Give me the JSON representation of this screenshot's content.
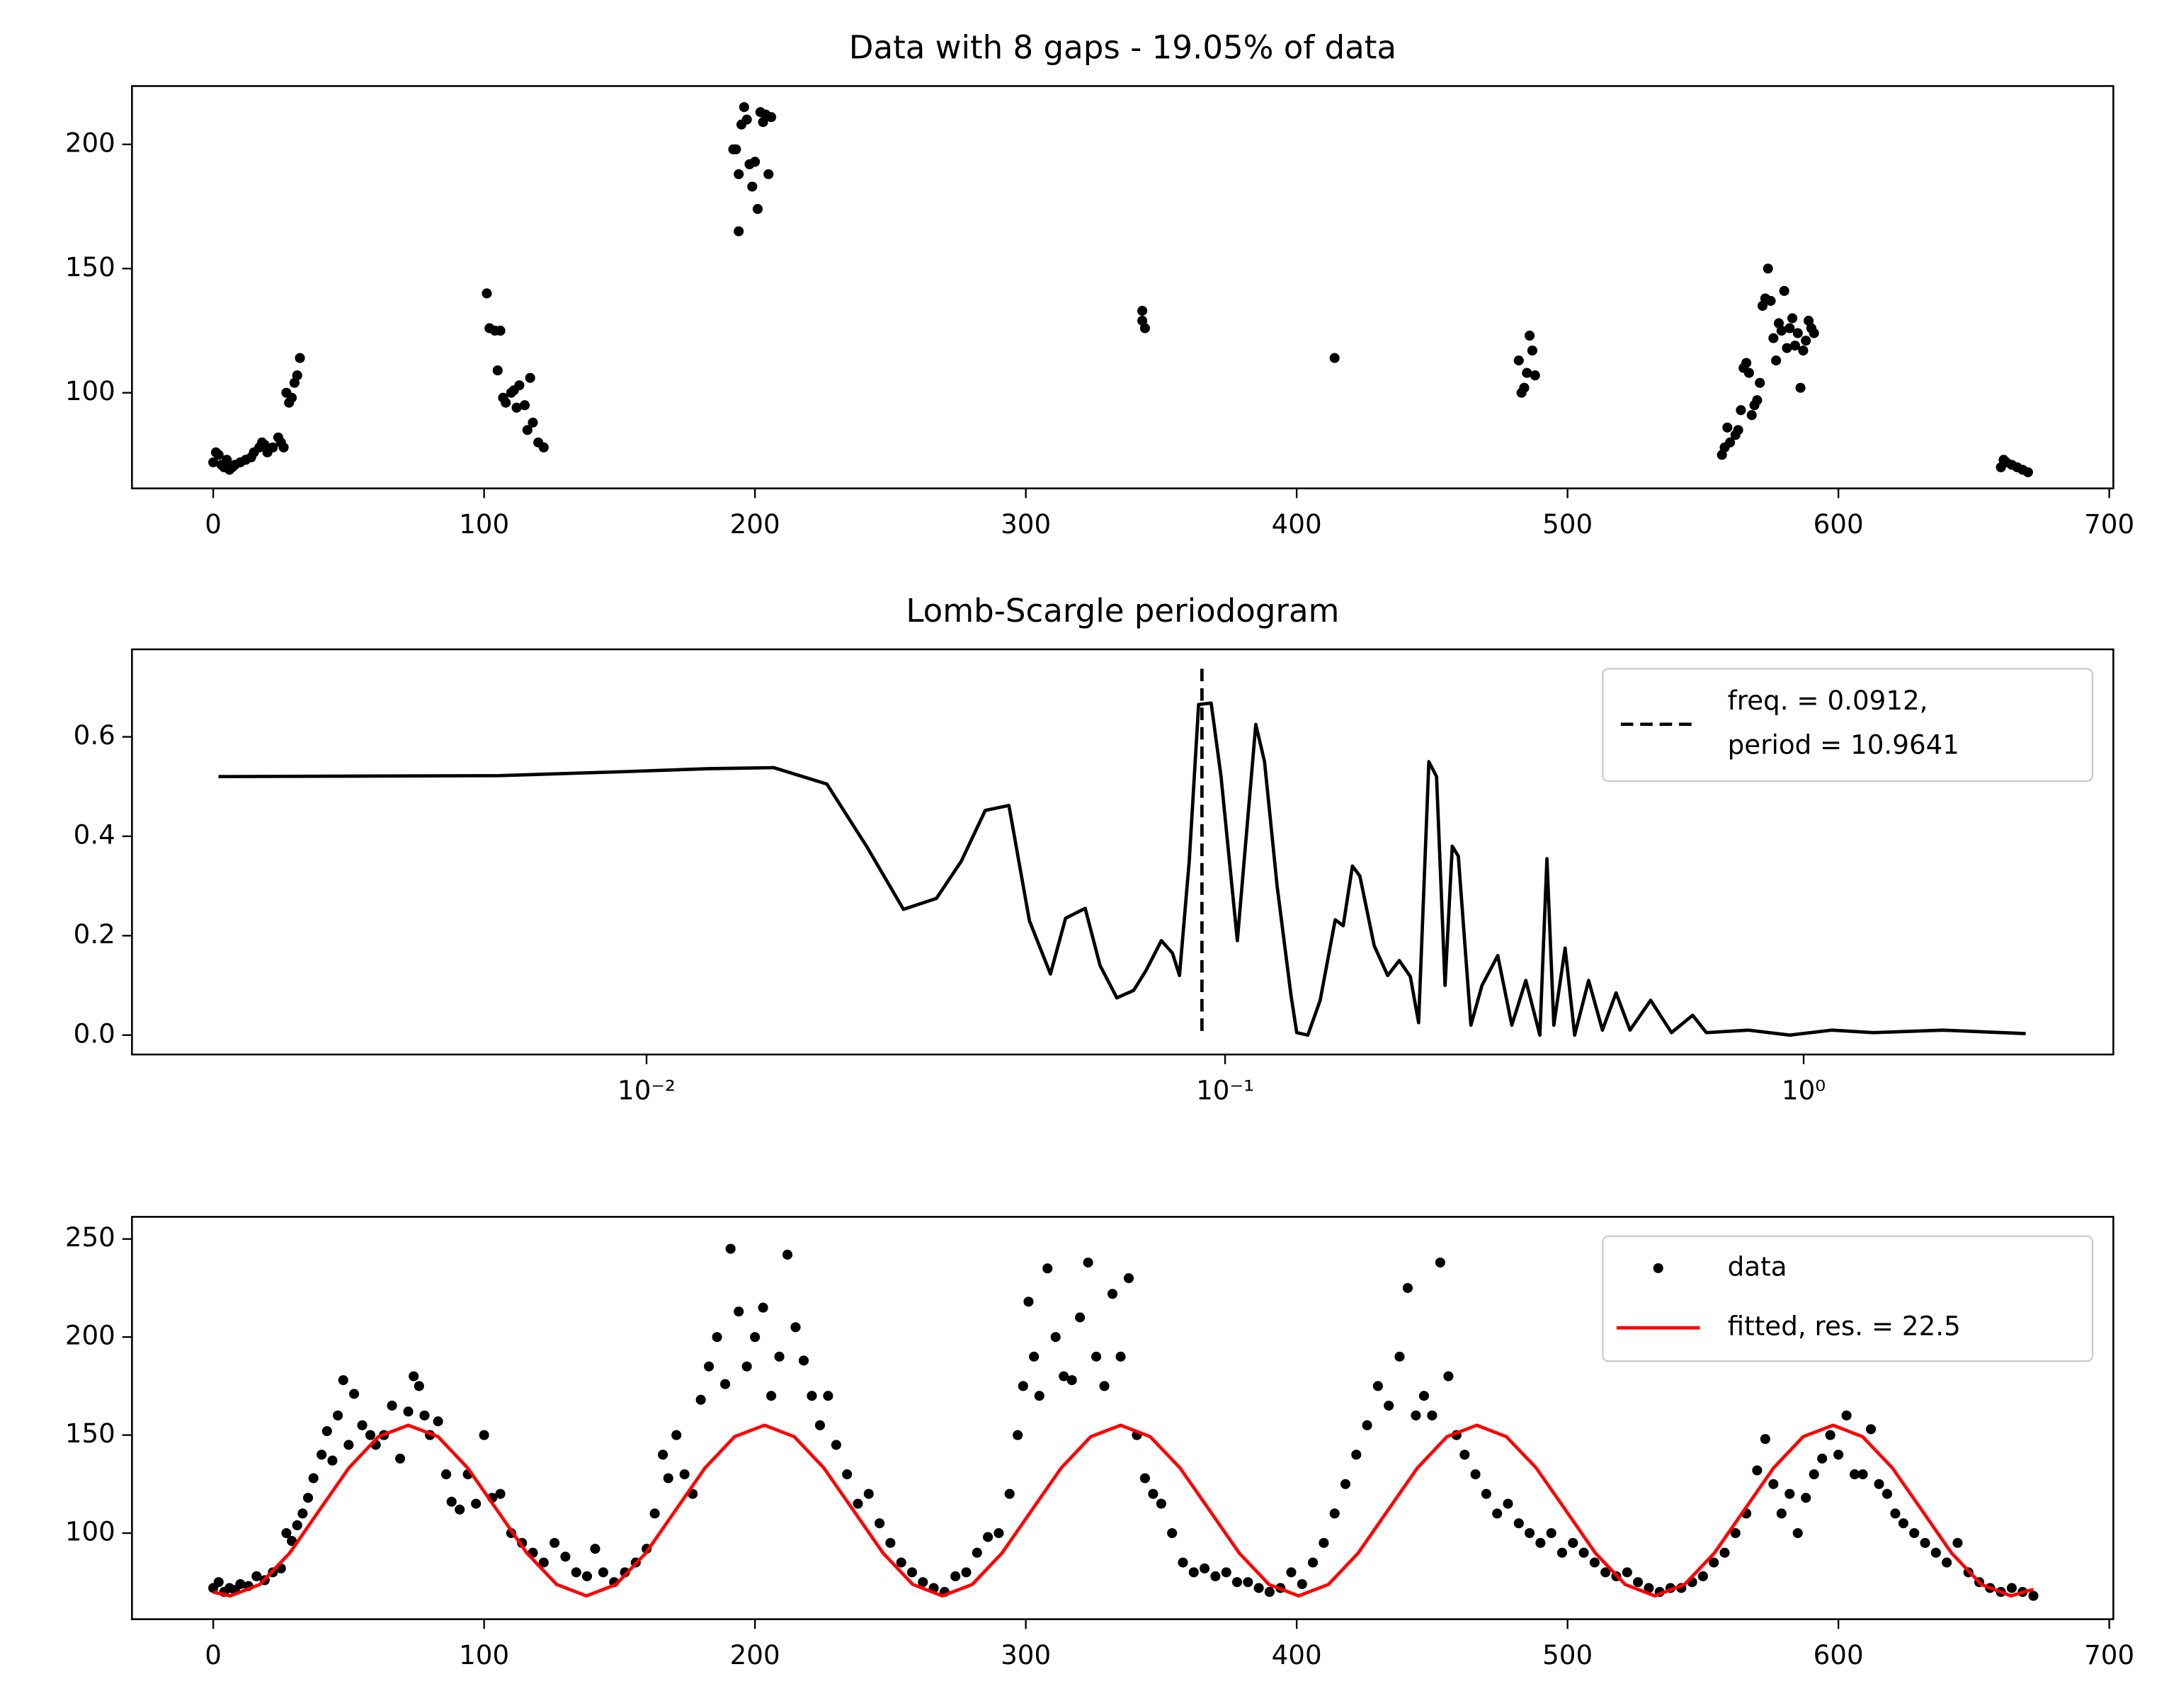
{
  "chart_data": [
    {
      "type": "scatter",
      "title": "Data with 8 gaps - 19.05% of data",
      "color": "#000000",
      "x": [
        0,
        1,
        2,
        3,
        4,
        5,
        6,
        7,
        8,
        10,
        12,
        14,
        15,
        17,
        18,
        19,
        20,
        22,
        24,
        25,
        26,
        27,
        28,
        29,
        30,
        31,
        32,
        101,
        102,
        104,
        106,
        105,
        107,
        108,
        110,
        111,
        112,
        113,
        115,
        116,
        117,
        118,
        120,
        122,
        192,
        193,
        194,
        194,
        195,
        196,
        197,
        198,
        199,
        200,
        201,
        202,
        203,
        204,
        205,
        206,
        343,
        343,
        344,
        414,
        482,
        483,
        484,
        485,
        486,
        487,
        488,
        557,
        558,
        559,
        560,
        562,
        563,
        564,
        565,
        566,
        567,
        568,
        569,
        570,
        571,
        572,
        573,
        574,
        575,
        576,
        577,
        578,
        579,
        580,
        581,
        582,
        583,
        584,
        585,
        586,
        587,
        588,
        589,
        590,
        591,
        660,
        661,
        662,
        664,
        666,
        668,
        670
      ],
      "values": [
        72,
        76,
        75,
        71,
        70,
        73,
        69,
        70,
        71,
        72,
        73,
        74,
        76,
        78,
        80,
        79,
        76,
        78,
        82,
        80,
        78,
        100,
        96,
        98,
        104,
        107,
        114,
        140,
        126,
        125,
        125,
        109,
        98,
        96,
        100,
        101,
        94,
        103,
        95,
        85,
        106,
        88,
        80,
        78,
        198,
        198,
        165,
        188,
        208,
        215,
        210,
        192,
        183,
        193,
        174,
        213,
        209,
        212,
        188,
        211,
        133,
        129,
        126,
        114,
        113,
        100,
        102,
        108,
        123,
        117,
        107,
        75,
        78,
        86,
        80,
        83,
        85,
        93,
        110,
        112,
        108,
        91,
        95,
        97,
        104,
        135,
        138,
        150,
        137,
        122,
        113,
        128,
        125,
        141,
        118,
        126,
        130,
        119,
        124,
        102,
        117,
        121,
        129,
        126,
        124,
        70,
        73,
        72,
        71,
        70,
        69,
        68
      ],
      "xlim": [
        -30,
        701.5
      ],
      "ylim": [
        61.5,
        223.5
      ],
      "xticks": [
        0,
        100,
        200,
        300,
        400,
        500,
        600,
        700
      ],
      "yticks": [
        100,
        150,
        200
      ]
    },
    {
      "type": "line",
      "title": "Lomb-Scargle periodogram",
      "color": "#000000",
      "xscale": "log",
      "x": [
        0.00182,
        0.00557,
        0.00917,
        0.0128,
        0.0166,
        0.0205,
        0.024,
        0.0278,
        0.0317,
        0.035,
        0.0385,
        0.0423,
        0.0459,
        0.0499,
        0.053,
        0.0573,
        0.0608,
        0.065,
        0.0695,
        0.073,
        0.0776,
        0.0811,
        0.0834,
        0.0867,
        0.09,
        0.0946,
        0.0984,
        0.105,
        0.113,
        0.117,
        0.123,
        0.13,
        0.133,
        0.139,
        0.146,
        0.155,
        0.16,
        0.166,
        0.171,
        0.181,
        0.191,
        0.2,
        0.209,
        0.216,
        0.225,
        0.232,
        0.24,
        0.247,
        0.253,
        0.266,
        0.278,
        0.296,
        0.313,
        0.331,
        0.35,
        0.36,
        0.37,
        0.387,
        0.402,
        0.425,
        0.449,
        0.474,
        0.501,
        0.544,
        0.591,
        0.643,
        0.679,
        0.802,
        0.946,
        1.12,
        1.32,
        1.74,
        2.42
      ],
      "values": [
        0.52,
        0.522,
        0.53,
        0.536,
        0.538,
        0.505,
        0.38,
        0.253,
        0.275,
        0.35,
        0.452,
        0.462,
        0.23,
        0.123,
        0.235,
        0.255,
        0.14,
        0.075,
        0.09,
        0.13,
        0.19,
        0.165,
        0.12,
        0.35,
        0.665,
        0.668,
        0.52,
        0.19,
        0.625,
        0.55,
        0.3,
        0.08,
        0.005,
        0,
        0.07,
        0.232,
        0.22,
        0.34,
        0.32,
        0.18,
        0.12,
        0.15,
        0.118,
        0.025,
        0.55,
        0.52,
        0.1,
        0.38,
        0.36,
        0.02,
        0.1,
        0.16,
        0.02,
        0.11,
        0,
        0.355,
        0.02,
        0.175,
        0,
        0.11,
        0.01,
        0.085,
        0.01,
        0.07,
        0.005,
        0.04,
        0.005,
        0.01,
        0,
        0.01,
        0.005,
        0.01,
        0.003
      ],
      "vline": {
        "x": 0.0912,
        "label": [
          "freq. = 0.0912,",
          "period = 10.9641"
        ],
        "color": "#000000",
        "style": "dashed"
      },
      "legend": "upper right",
      "xlim": [
        0.00129,
        3.43
      ],
      "ylim": [
        -0.039,
        0.776
      ],
      "xticks": [
        {
          "value": 0.01,
          "label": "10⁻²"
        },
        {
          "value": 0.1,
          "label": "10⁻¹"
        },
        {
          "value": 1,
          "label": "10⁰"
        }
      ],
      "yticks": [
        {
          "value": 0,
          "label": "0.0"
        },
        0.2,
        0.4,
        0.6
      ]
    },
    {
      "type": "combo",
      "legend": "upper right",
      "series": [
        {
          "name": "data",
          "type": "scatter",
          "color": "#000000",
          "x": [
            0,
            2,
            4,
            6,
            8,
            10,
            13,
            16,
            19,
            22,
            25,
            27,
            29,
            31,
            33,
            35,
            37,
            40,
            42,
            44,
            46,
            48,
            50,
            52,
            55,
            58,
            60,
            63,
            66,
            69,
            72,
            74,
            76,
            78,
            80,
            83,
            86,
            88,
            91,
            94,
            97,
            100,
            103,
            106,
            110,
            114,
            118,
            122,
            126,
            130,
            134,
            138,
            141,
            144,
            148,
            152,
            156,
            160,
            163,
            166,
            168,
            171,
            174,
            177,
            180,
            183,
            186,
            189,
            191,
            194,
            197,
            200,
            203,
            206,
            209,
            212,
            215,
            218,
            221,
            224,
            227,
            230,
            234,
            238,
            242,
            246,
            250,
            254,
            258,
            262,
            266,
            270,
            274,
            278,
            282,
            286,
            290,
            294,
            297,
            299,
            301,
            303,
            305,
            308,
            311,
            314,
            317,
            320,
            323,
            326,
            329,
            332,
            335,
            338,
            341,
            344,
            347,
            350,
            354,
            358,
            362,
            366,
            370,
            374,
            378,
            382,
            386,
            390,
            394,
            398,
            402,
            406,
            410,
            414,
            418,
            422,
            426,
            430,
            434,
            438,
            441,
            444,
            447,
            450,
            453,
            456,
            459,
            462,
            466,
            470,
            474,
            478,
            482,
            486,
            490,
            494,
            498,
            502,
            506,
            510,
            514,
            518,
            522,
            526,
            530,
            534,
            538,
            542,
            546,
            550,
            554,
            558,
            562,
            566,
            570,
            573,
            576,
            579,
            582,
            585,
            588,
            591,
            594,
            597,
            600,
            603,
            606,
            609,
            612,
            615,
            618,
            621,
            624,
            628,
            632,
            636,
            640,
            644,
            648,
            652,
            656,
            660,
            664,
            668,
            672
          ],
          "values": [
            72,
            75,
            70,
            72,
            71,
            74,
            73,
            78,
            76,
            80,
            82,
            100,
            96,
            104,
            110,
            118,
            128,
            140,
            152,
            137,
            160,
            178,
            145,
            171,
            155,
            150,
            145,
            150,
            165,
            138,
            162,
            180,
            175,
            160,
            150,
            157,
            130,
            116,
            112,
            130,
            115,
            150,
            118,
            120,
            100,
            95,
            90,
            85,
            95,
            88,
            80,
            78,
            92,
            80,
            75,
            80,
            85,
            92,
            110,
            140,
            128,
            150,
            130,
            120,
            168,
            185,
            200,
            176,
            245,
            213,
            185,
            200,
            215,
            170,
            190,
            242,
            205,
            188,
            170,
            155,
            170,
            145,
            130,
            115,
            120,
            105,
            95,
            85,
            80,
            75,
            72,
            70,
            78,
            80,
            90,
            98,
            100,
            120,
            150,
            175,
            218,
            190,
            170,
            235,
            200,
            180,
            178,
            210,
            238,
            190,
            175,
            222,
            190,
            230,
            150,
            128,
            120,
            115,
            100,
            85,
            80,
            82,
            78,
            80,
            75,
            75,
            72,
            70,
            72,
            80,
            74,
            85,
            95,
            110,
            125,
            140,
            155,
            175,
            165,
            190,
            225,
            160,
            170,
            160,
            238,
            180,
            150,
            140,
            130,
            120,
            110,
            115,
            105,
            100,
            95,
            100,
            90,
            95,
            90,
            85,
            80,
            78,
            80,
            75,
            72,
            70,
            72,
            72,
            75,
            78,
            85,
            90,
            100,
            110,
            132,
            148,
            125,
            110,
            120,
            100,
            118,
            130,
            138,
            150,
            140,
            160,
            130,
            130,
            153,
            125,
            120,
            110,
            105,
            100,
            95,
            90,
            85,
            95,
            80,
            75,
            72,
            70,
            72,
            70,
            68
          ]
        },
        {
          "name": "fitted, res. = 22.5",
          "type": "line",
          "color": "#ff0000",
          "x": [
            0,
            6.3,
            17.2,
            28.2,
            39.1,
            50.1,
            61,
            72,
            83,
            93.9,
            104.9,
            115.8,
            126.8,
            137.8,
            148.7,
            159.7,
            170.6,
            181.6,
            192.5,
            203.5,
            214.5,
            225.4,
            236.4,
            247.3,
            258.3,
            269.2,
            280.2,
            291.2,
            302.1,
            313.1,
            324,
            335,
            345.9,
            356.9,
            367.9,
            378.8,
            389.8,
            400.7,
            411.7,
            422.7,
            433.6,
            444.6,
            455.5,
            466.5,
            477.4,
            488.4,
            499.4,
            510.3,
            521.3,
            532.2,
            543.2,
            554.2,
            565.1,
            576.1,
            587,
            598,
            608.9,
            619.9,
            630.9,
            641.8,
            652.8,
            663.7,
            672
          ],
          "values": [
            69.9,
            68,
            73.8,
            89.8,
            111.5,
            133.3,
            149.2,
            155,
            149.2,
            133.3,
            111.5,
            89.8,
            73.8,
            68,
            73.8,
            89.8,
            111.5,
            133.3,
            149.2,
            155,
            149.2,
            133.3,
            111.5,
            89.8,
            73.8,
            68,
            73.8,
            89.8,
            111.5,
            133.3,
            149.2,
            155,
            149.2,
            133.3,
            111.5,
            89.8,
            73.8,
            68,
            73.8,
            89.8,
            111.5,
            133.3,
            149.2,
            155,
            149.2,
            133.3,
            111.5,
            89.8,
            73.8,
            68,
            73.8,
            89.8,
            111.5,
            133.3,
            149.2,
            155,
            149.2,
            133.3,
            111.5,
            89.8,
            73.8,
            68,
            71.3
          ]
        }
      ],
      "xlim": [
        -30,
        701.5
      ],
      "ylim": [
        56.1,
        261.3
      ],
      "xticks": [
        0,
        100,
        200,
        300,
        400,
        500,
        600,
        700
      ],
      "yticks": [
        100,
        150,
        200,
        250
      ]
    }
  ]
}
